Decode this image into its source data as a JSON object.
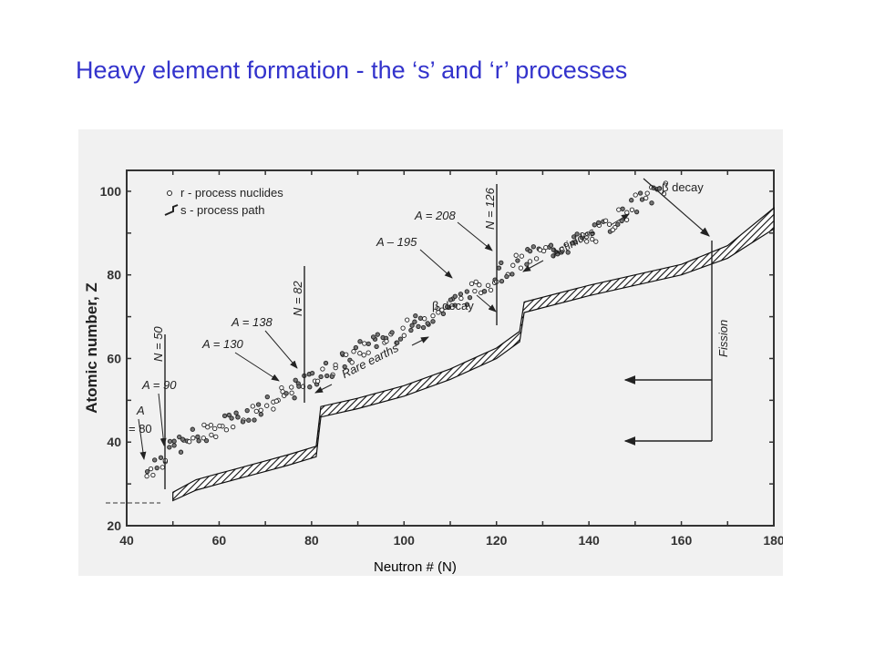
{
  "title": "Heavy element formation - the ‘s’ and ‘r’ processes",
  "caption": "Neutron # (N)",
  "colors": {
    "title": "#3333cc",
    "ink": "#222222",
    "panel": "#f1f1f1"
  },
  "figure": {
    "y_axis_title": "Atomic number, Z",
    "legend": {
      "r_label": "r - process nuclides",
      "s_label": "s - process path"
    },
    "labels": {
      "n50": "N = 50",
      "n82": "N = 82",
      "n126": "N = 126",
      "a80": "A",
      "a80b": "= 80",
      "a90": "A = 90",
      "a130": "A = 130",
      "a138": "A = 138",
      "a195": "A – 195",
      "a208": "A = 208",
      "beta1": "β decay",
      "beta2": "β decay",
      "rare": "Rare earths",
      "act": "Actinides",
      "fission": "Fission"
    }
  },
  "chart_data": {
    "type": "scatter",
    "title": "",
    "xlabel": "",
    "ylabel": "Atomic number, Z",
    "xlim": [
      40,
      180
    ],
    "ylim": [
      20,
      105
    ],
    "x_ticks": [
      40,
      60,
      80,
      100,
      120,
      140,
      160,
      180
    ],
    "y_ticks": [
      20,
      40,
      60,
      80,
      100
    ],
    "series": [
      {
        "name": "s - process path",
        "type": "band",
        "points": [
          {
            "x": 50,
            "lo": 26,
            "hi": 28
          },
          {
            "x": 55,
            "lo": 28.5,
            "hi": 31
          },
          {
            "x": 60,
            "lo": 30,
            "hi": 32.5
          },
          {
            "x": 65,
            "lo": 31.5,
            "hi": 34
          },
          {
            "x": 70,
            "lo": 33,
            "hi": 35.5
          },
          {
            "x": 75,
            "lo": 34.5,
            "hi": 37
          },
          {
            "x": 81,
            "lo": 36.5,
            "hi": 39
          },
          {
            "x": 82,
            "lo": 46,
            "hi": 48.5
          },
          {
            "x": 90,
            "lo": 48,
            "hi": 50.5
          },
          {
            "x": 100,
            "lo": 51,
            "hi": 53.5
          },
          {
            "x": 110,
            "lo": 55,
            "hi": 57.5
          },
          {
            "x": 120,
            "lo": 60,
            "hi": 62.5
          },
          {
            "x": 125,
            "lo": 64,
            "hi": 66.5
          },
          {
            "x": 126,
            "lo": 71,
            "hi": 73.5
          },
          {
            "x": 140,
            "lo": 75,
            "hi": 77.5
          },
          {
            "x": 160,
            "lo": 80,
            "hi": 82.5
          },
          {
            "x": 170,
            "lo": 84,
            "hi": 87
          },
          {
            "x": 180,
            "lo": 91,
            "hi": 96
          }
        ]
      },
      {
        "name": "r - process nuclides",
        "type": "scatter",
        "trend": [
          {
            "x": 44,
            "y": 33
          },
          {
            "x": 50,
            "y": 39
          },
          {
            "x": 60,
            "y": 44
          },
          {
            "x": 70,
            "y": 49
          },
          {
            "x": 80,
            "y": 55
          },
          {
            "x": 90,
            "y": 62
          },
          {
            "x": 100,
            "y": 67
          },
          {
            "x": 110,
            "y": 73
          },
          {
            "x": 120,
            "y": 80
          },
          {
            "x": 126,
            "y": 84
          },
          {
            "x": 140,
            "y": 89
          },
          {
            "x": 150,
            "y": 97
          },
          {
            "x": 156,
            "y": 101
          }
        ]
      }
    ]
  }
}
